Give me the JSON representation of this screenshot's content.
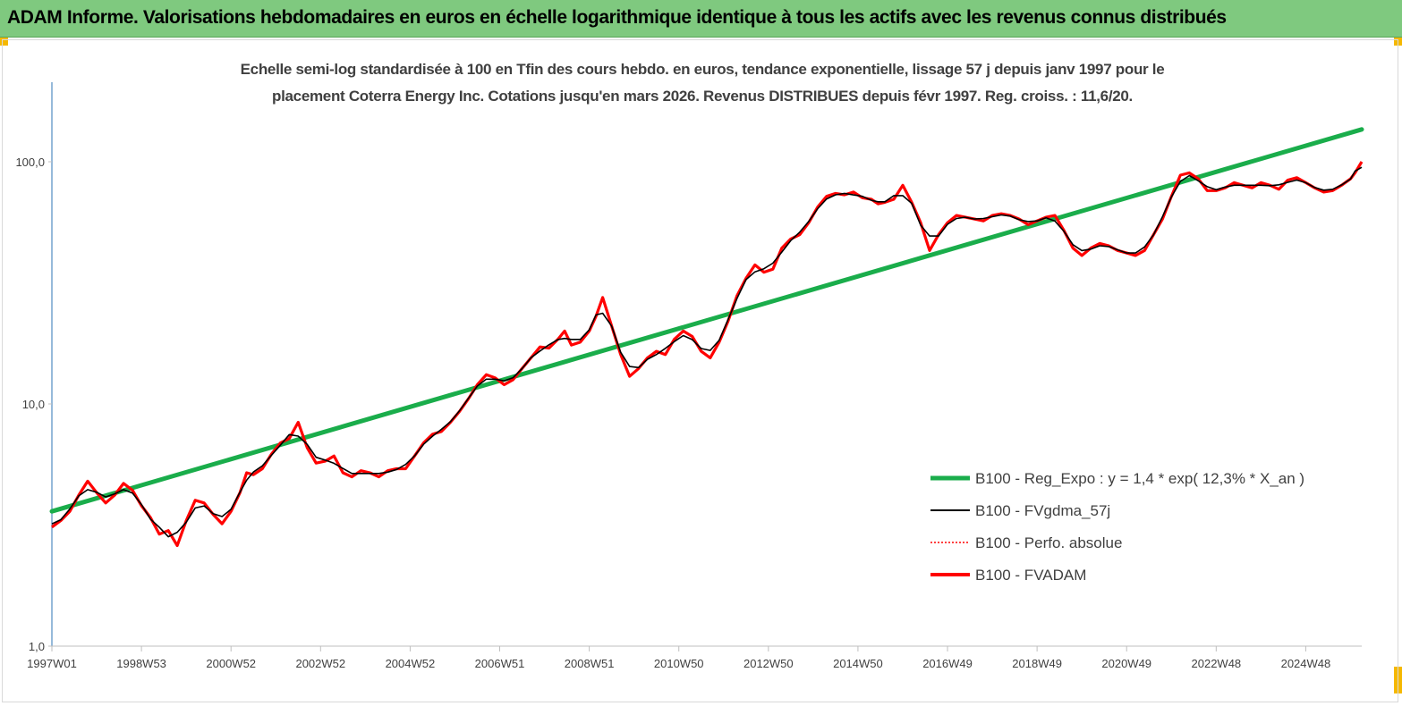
{
  "banner": {
    "title": "ADAM Informe. Valorisations hebdomadaires en euros en échelle logarithmique identique à tous les actifs avec les revenus connus distribués"
  },
  "chart_data": {
    "type": "line",
    "title_line1": "Echelle semi-log standardisée à 100 en Tfin des cours hebdo. en euros, tendance exponentielle, lissage 57 j depuis janv 1997 pour le",
    "title_line2": "placement Coterra Energy Inc. Cotations jusqu'en mars 2026.  Revenus DISTRIBUES depuis févr 1997. Reg. croiss. : 11,6/20.",
    "y_scale": "log",
    "ylim": [
      1,
      180
    ],
    "y_ticks": [
      {
        "value": 1,
        "label": "1,0"
      },
      {
        "value": 10,
        "label": "10,0"
      },
      {
        "value": 100,
        "label": "100,0"
      }
    ],
    "x_range": [
      1997.0,
      2026.25
    ],
    "x_ticks": [
      {
        "value": 1997.0,
        "label": "1997W01"
      },
      {
        "value": 1999.0,
        "label": "1998W53"
      },
      {
        "value": 2001.0,
        "label": "2000W52"
      },
      {
        "value": 2003.0,
        "label": "2002W52"
      },
      {
        "value": 2005.0,
        "label": "2004W52"
      },
      {
        "value": 2007.0,
        "label": "2006W51"
      },
      {
        "value": 2009.0,
        "label": "2008W51"
      },
      {
        "value": 2011.0,
        "label": "2010W50"
      },
      {
        "value": 2013.0,
        "label": "2012W50"
      },
      {
        "value": 2015.0,
        "label": "2014W50"
      },
      {
        "value": 2017.0,
        "label": "2016W49"
      },
      {
        "value": 2019.0,
        "label": "2018W49"
      },
      {
        "value": 2021.0,
        "label": "2020W49"
      },
      {
        "value": 2023.0,
        "label": "2022W48"
      },
      {
        "value": 2025.0,
        "label": "2024W48"
      }
    ],
    "grid": "vertical tick marks only",
    "legend_position": "bottom-right",
    "colors": {
      "reg_expo": "#1aad4b",
      "fvgdma": "#000000",
      "perfo": "#ff0000",
      "fvadam": "#ff0000",
      "axis": "#2e75b6"
    },
    "series": [
      {
        "name": "B100 - Reg_Expo : y = 1,4 * exp( 12,3% *  X_an )",
        "style": "thick-solid",
        "x": [
          1997.0,
          2026.25
        ],
        "values": [
          3.6,
          136
        ]
      },
      {
        "name": "B100 - FVgdma_57j",
        "style": "thin-solid-smoothed",
        "x": [],
        "values": []
      },
      {
        "name": "B100 - Perfo. absolue",
        "style": "dotted",
        "x": [],
        "values": []
      },
      {
        "name": "B100 - FVADAM",
        "style": "thick-solid",
        "x": [
          1997.0,
          1997.2,
          1997.4,
          1997.6,
          1997.8,
          1998.0,
          1998.2,
          1998.4,
          1998.6,
          1998.8,
          1999.0,
          1999.2,
          1999.4,
          1999.6,
          1999.8,
          2000.0,
          2000.2,
          2000.4,
          2000.6,
          2000.8,
          2001.0,
          2001.2,
          2001.35,
          2001.5,
          2001.7,
          2001.9,
          2002.1,
          2002.3,
          2002.5,
          2002.7,
          2002.9,
          2003.1,
          2003.3,
          2003.5,
          2003.7,
          2003.9,
          2004.1,
          2004.3,
          2004.5,
          2004.7,
          2004.9,
          2005.1,
          2005.3,
          2005.5,
          2005.7,
          2005.9,
          2006.1,
          2006.3,
          2006.5,
          2006.7,
          2006.9,
          2007.1,
          2007.3,
          2007.5,
          2007.7,
          2007.9,
          2008.1,
          2008.3,
          2008.45,
          2008.6,
          2008.8,
          2009.0,
          2009.15,
          2009.3,
          2009.5,
          2009.7,
          2009.9,
          2010.1,
          2010.3,
          2010.5,
          2010.7,
          2010.9,
          2011.1,
          2011.3,
          2011.5,
          2011.7,
          2011.9,
          2012.1,
          2012.3,
          2012.5,
          2012.7,
          2012.9,
          2013.1,
          2013.3,
          2013.5,
          2013.7,
          2013.9,
          2014.1,
          2014.3,
          2014.5,
          2014.7,
          2014.9,
          2015.1,
          2015.3,
          2015.45,
          2015.6,
          2015.8,
          2016.0,
          2016.2,
          2016.4,
          2016.6,
          2016.8,
          2017.0,
          2017.2,
          2017.4,
          2017.6,
          2017.8,
          2018.0,
          2018.2,
          2018.4,
          2018.6,
          2018.8,
          2019.0,
          2019.2,
          2019.4,
          2019.6,
          2019.8,
          2020.0,
          2020.2,
          2020.4,
          2020.6,
          2020.8,
          2021.0,
          2021.2,
          2021.4,
          2021.6,
          2021.8,
          2022.0,
          2022.2,
          2022.4,
          2022.6,
          2022.8,
          2023.0,
          2023.2,
          2023.4,
          2023.6,
          2023.8,
          2024.0,
          2024.2,
          2024.4,
          2024.6,
          2024.8,
          2025.0,
          2025.2,
          2025.4,
          2025.6,
          2025.8,
          2026.0,
          2026.1,
          2026.25
        ],
        "values": [
          3.1,
          3.3,
          3.6,
          4.2,
          4.8,
          4.3,
          3.9,
          4.2,
          4.7,
          4.4,
          3.8,
          3.4,
          2.9,
          3.0,
          2.6,
          3.3,
          4.0,
          3.9,
          3.5,
          3.2,
          3.6,
          4.3,
          5.2,
          5.1,
          5.4,
          6.2,
          6.9,
          7.2,
          8.4,
          6.6,
          5.7,
          5.8,
          6.1,
          5.2,
          5.0,
          5.3,
          5.2,
          5.0,
          5.3,
          5.4,
          5.4,
          6.1,
          6.9,
          7.5,
          7.7,
          8.4,
          9.3,
          10.5,
          12.0,
          13.2,
          12.8,
          12.0,
          12.6,
          14.0,
          15.5,
          17.2,
          17.0,
          18.5,
          20.0,
          17.5,
          18.0,
          20.0,
          23.0,
          27.5,
          21.0,
          16.0,
          13.0,
          14.0,
          15.5,
          16.5,
          16.0,
          18.5,
          20.0,
          19.0,
          16.5,
          15.5,
          18.0,
          22.0,
          28.0,
          33.0,
          37.5,
          35.0,
          36.0,
          44.0,
          48.0,
          50.0,
          56.0,
          65.0,
          72.0,
          74.0,
          73.0,
          75.0,
          71.0,
          70.0,
          67.0,
          68.0,
          70.0,
          80.0,
          68.0,
          56.0,
          43.0,
          50.0,
          56.0,
          60.0,
          59.0,
          58.0,
          57.0,
          60.0,
          61.0,
          60.0,
          58.0,
          55.0,
          57.0,
          59.0,
          60.0,
          52.0,
          44.0,
          41.0,
          44.0,
          46.0,
          45.0,
          43.0,
          42.0,
          41.0,
          43.0,
          50.0,
          58.0,
          72.0,
          88.0,
          90.0,
          85.0,
          76.0,
          76.0,
          78.0,
          82.0,
          80.0,
          78.0,
          82.0,
          80.0,
          77.0,
          84.0,
          86.0,
          82.0,
          78.0,
          75.0,
          76.0,
          80.0,
          85.0,
          90.0,
          100.0
        ]
      }
    ]
  }
}
